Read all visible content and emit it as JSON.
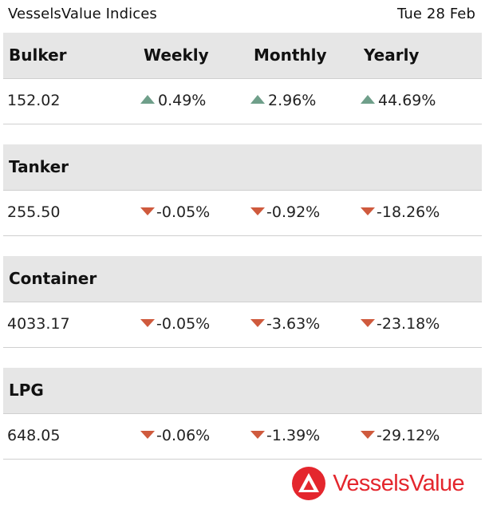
{
  "header": {
    "title": "VesselsValue Indices",
    "date": "Tue 28 Feb"
  },
  "columns": {
    "weekly": "Weekly",
    "monthly": "Monthly",
    "yearly": "Yearly"
  },
  "sections": [
    {
      "name": "Bulker",
      "index": "152.02",
      "weekly": {
        "value": "0.49%",
        "direction": "up"
      },
      "monthly": {
        "value": "2.96%",
        "direction": "up"
      },
      "yearly": {
        "value": "44.69%",
        "direction": "up"
      }
    },
    {
      "name": "Tanker",
      "index": "255.50",
      "weekly": {
        "value": "-0.05%",
        "direction": "down"
      },
      "monthly": {
        "value": "-0.92%",
        "direction": "down"
      },
      "yearly": {
        "value": "-18.26%",
        "direction": "down"
      }
    },
    {
      "name": "Container",
      "index": "4033.17",
      "weekly": {
        "value": "-0.05%",
        "direction": "down"
      },
      "monthly": {
        "value": "-3.63%",
        "direction": "down"
      },
      "yearly": {
        "value": "-23.18%",
        "direction": "down"
      }
    },
    {
      "name": "LPG",
      "index": "648.05",
      "weekly": {
        "value": "-0.06%",
        "direction": "down"
      },
      "monthly": {
        "value": "-1.39%",
        "direction": "down"
      },
      "yearly": {
        "value": "-29.12%",
        "direction": "down"
      }
    }
  ],
  "logo": {
    "text": "VesselsValue",
    "icon": "vesselsvalue-logo-icon"
  },
  "colors": {
    "up": "#6f9f8a",
    "down": "#cf5a3d",
    "brand": "#e4262d",
    "header_bg": "#e6e6e6"
  }
}
